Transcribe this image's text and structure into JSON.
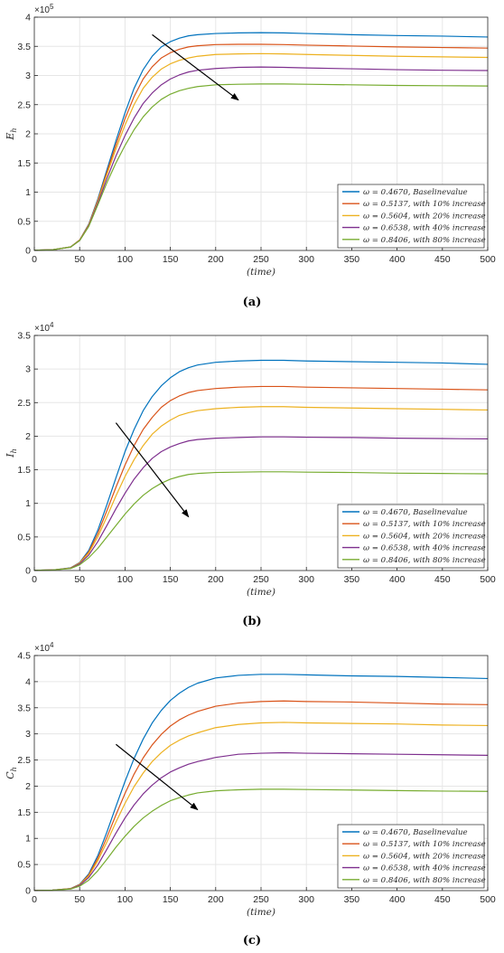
{
  "chart_data": [
    {
      "type": "line",
      "caption": "(a)",
      "xlabel": "(time)",
      "ylabel": "E_h",
      "exponent_label": "×10^5",
      "scale": 100000,
      "xlim": [
        0,
        500
      ],
      "ylim": [
        0,
        400000
      ],
      "xticks": [
        0,
        50,
        100,
        150,
        200,
        250,
        300,
        350,
        400,
        450,
        500
      ],
      "yticks": [
        0,
        0.5,
        1,
        1.5,
        2,
        2.5,
        3,
        3.5,
        4
      ],
      "grid": true,
      "legend_position": "bottom-right",
      "arrow": {
        "from": [
          130,
          370000
        ],
        "to": [
          225,
          258000
        ]
      },
      "x": [
        0,
        20,
        40,
        50,
        60,
        70,
        80,
        90,
        100,
        110,
        120,
        130,
        140,
        150,
        160,
        170,
        180,
        200,
        225,
        250,
        275,
        300,
        350,
        400,
        450,
        500
      ],
      "series": [
        {
          "name": "ω = 0.4670, Baselinevalue",
          "color": "#0072BD",
          "values": [
            500,
            1200,
            6000,
            18000,
            45000,
            88000,
            138000,
            188000,
            236000,
            278000,
            310000,
            333000,
            349000,
            358000,
            364000,
            368000,
            370000,
            372000,
            373000,
            373500,
            373000,
            372000,
            370000,
            368500,
            367500,
            366000
          ]
        },
        {
          "name": "ω = 0.5137, with 10% increase",
          "color": "#D95319",
          "values": [
            500,
            1200,
            6000,
            18000,
            44000,
            86000,
            134000,
            181000,
            226000,
            264000,
            294000,
            315000,
            330000,
            339000,
            345000,
            349000,
            351000,
            353000,
            353500,
            353500,
            353000,
            352000,
            350500,
            349000,
            348000,
            347000
          ]
        },
        {
          "name": "ω = 0.5604, with 20% increase",
          "color": "#EDB120",
          "values": [
            500,
            1200,
            6000,
            17500,
            43000,
            84000,
            130000,
            174000,
            215000,
            250000,
            278000,
            297000,
            311000,
            320000,
            326000,
            330000,
            333000,
            336000,
            337000,
            337500,
            337000,
            336000,
            334500,
            333000,
            332000,
            331000
          ]
        },
        {
          "name": "ω = 0.6538, with 40% increase",
          "color": "#7E2F8E",
          "values": [
            500,
            1200,
            5800,
            17000,
            42000,
            81000,
            123000,
            162000,
            197000,
            227000,
            252000,
            270000,
            284000,
            294000,
            301000,
            306000,
            309000,
            312000,
            314000,
            314500,
            314000,
            313000,
            311500,
            310000,
            309000,
            308500
          ]
        },
        {
          "name": "ω = 0.8406, with 80% increase",
          "color": "#77AC30",
          "values": [
            500,
            1200,
            5800,
            17000,
            41000,
            78000,
            116000,
            150000,
            180000,
            207000,
            229000,
            246000,
            259000,
            268000,
            274000,
            278000,
            281000,
            284000,
            285000,
            285500,
            285500,
            285000,
            284000,
            283000,
            282500,
            282000
          ]
        }
      ]
    },
    {
      "type": "line",
      "caption": "(b)",
      "xlabel": "(time)",
      "ylabel": "I_h",
      "exponent_label": "×10^4",
      "scale": 10000,
      "xlim": [
        0,
        500
      ],
      "ylim": [
        0,
        35000
      ],
      "xticks": [
        0,
        50,
        100,
        150,
        200,
        250,
        300,
        350,
        400,
        450,
        500
      ],
      "yticks": [
        0,
        0.5,
        1,
        1.5,
        2,
        2.5,
        3,
        3.5
      ],
      "grid": true,
      "legend_position": "bottom-right",
      "arrow": {
        "from": [
          90,
          22000
        ],
        "to": [
          170,
          8000
        ]
      },
      "x": [
        0,
        20,
        40,
        50,
        60,
        70,
        80,
        90,
        100,
        110,
        120,
        130,
        140,
        150,
        160,
        170,
        180,
        200,
        225,
        250,
        275,
        300,
        350,
        400,
        450,
        500
      ],
      "series": [
        {
          "name": "ω = 0.4670, Baselinevalue",
          "color": "#0072BD",
          "values": [
            30,
            80,
            400,
            1200,
            3000,
            6000,
            9800,
            13800,
            17700,
            21000,
            23800,
            25900,
            27500,
            28700,
            29600,
            30200,
            30600,
            31000,
            31200,
            31300,
            31300,
            31200,
            31100,
            31000,
            30900,
            30700
          ]
        },
        {
          "name": "ω = 0.5137, with 10% increase",
          "color": "#D95319",
          "values": [
            30,
            80,
            380,
            1150,
            2800,
            5500,
            8900,
            12400,
            15700,
            18600,
            21000,
            22800,
            24300,
            25300,
            26000,
            26500,
            26800,
            27100,
            27300,
            27400,
            27400,
            27300,
            27200,
            27100,
            27000,
            26900
          ]
        },
        {
          "name": "ω = 0.5604, with 20% increase",
          "color": "#EDB120",
          "values": [
            30,
            80,
            360,
            1100,
            2600,
            5000,
            8000,
            11100,
            14000,
            16500,
            18600,
            20300,
            21500,
            22400,
            23100,
            23500,
            23800,
            24100,
            24300,
            24400,
            24400,
            24300,
            24200,
            24100,
            24000,
            23900
          ]
        },
        {
          "name": "ω = 0.6538, with 40% increase",
          "color": "#7E2F8E",
          "values": [
            30,
            80,
            330,
            1000,
            2300,
            4300,
            6700,
            9200,
            11500,
            13600,
            15300,
            16700,
            17700,
            18400,
            18900,
            19300,
            19500,
            19700,
            19800,
            19900,
            19900,
            19850,
            19800,
            19700,
            19650,
            19600
          ]
        },
        {
          "name": "ω = 0.8406, with 80% increase",
          "color": "#77AC30",
          "values": [
            30,
            80,
            300,
            850,
            1900,
            3300,
            5000,
            6700,
            8400,
            9900,
            11200,
            12200,
            13000,
            13600,
            14000,
            14300,
            14450,
            14600,
            14650,
            14700,
            14700,
            14650,
            14600,
            14500,
            14450,
            14400
          ]
        }
      ]
    },
    {
      "type": "line",
      "caption": "(c)",
      "xlabel": "(time)",
      "ylabel": "C_h",
      "exponent_label": "×10^4",
      "scale": 10000,
      "xlim": [
        0,
        500
      ],
      "ylim": [
        0,
        45000
      ],
      "xticks": [
        0,
        50,
        100,
        150,
        200,
        250,
        300,
        350,
        400,
        450,
        500
      ],
      "yticks": [
        0,
        0.5,
        1,
        1.5,
        2,
        2.5,
        3,
        3.5,
        4,
        4.5
      ],
      "grid": true,
      "legend_position": "bottom-right",
      "arrow": {
        "from": [
          90,
          28000
        ],
        "to": [
          180,
          15500
        ]
      },
      "x": [
        0,
        20,
        40,
        50,
        60,
        70,
        80,
        90,
        100,
        110,
        120,
        130,
        140,
        150,
        160,
        170,
        180,
        200,
        225,
        250,
        275,
        300,
        350,
        400,
        450,
        500
      ],
      "series": [
        {
          "name": "ω = 0.4670, Baselinevalue",
          "color": "#0072BD",
          "values": [
            30,
            90,
            400,
            1200,
            3200,
            6700,
            11200,
            16100,
            20900,
            25300,
            29000,
            32100,
            34500,
            36400,
            37800,
            38900,
            39700,
            40700,
            41200,
            41400,
            41400,
            41300,
            41100,
            41000,
            40800,
            40600
          ]
        },
        {
          "name": "ω = 0.5137, with 10% increase",
          "color": "#D95319",
          "values": [
            30,
            90,
            390,
            1150,
            3000,
            6200,
            10200,
            14500,
            18600,
            22300,
            25400,
            27900,
            29900,
            31500,
            32700,
            33600,
            34300,
            35300,
            35900,
            36200,
            36300,
            36200,
            36100,
            35900,
            35700,
            35600
          ]
        },
        {
          "name": "ω = 0.5604, with 20% increase",
          "color": "#EDB120",
          "values": [
            30,
            90,
            370,
            1100,
            2800,
            5700,
            9300,
            13100,
            16700,
            19900,
            22500,
            24700,
            26400,
            27800,
            28800,
            29600,
            30200,
            31200,
            31800,
            32100,
            32200,
            32100,
            32000,
            31900,
            31700,
            31600
          ]
        },
        {
          "name": "ω = 0.6538, with 40% increase",
          "color": "#7E2F8E",
          "values": [
            30,
            90,
            340,
            1000,
            2500,
            4900,
            7900,
            11000,
            13900,
            16400,
            18500,
            20200,
            21600,
            22700,
            23500,
            24200,
            24700,
            25500,
            26100,
            26300,
            26400,
            26300,
            26200,
            26100,
            26000,
            25900
          ]
        },
        {
          "name": "ω = 0.8406, with 80% increase",
          "color": "#77AC30",
          "values": [
            30,
            90,
            300,
            850,
            2000,
            3800,
            6000,
            8300,
            10400,
            12300,
            13900,
            15200,
            16300,
            17200,
            17800,
            18300,
            18700,
            19100,
            19300,
            19400,
            19400,
            19350,
            19250,
            19150,
            19050,
            19000
          ]
        }
      ]
    }
  ]
}
